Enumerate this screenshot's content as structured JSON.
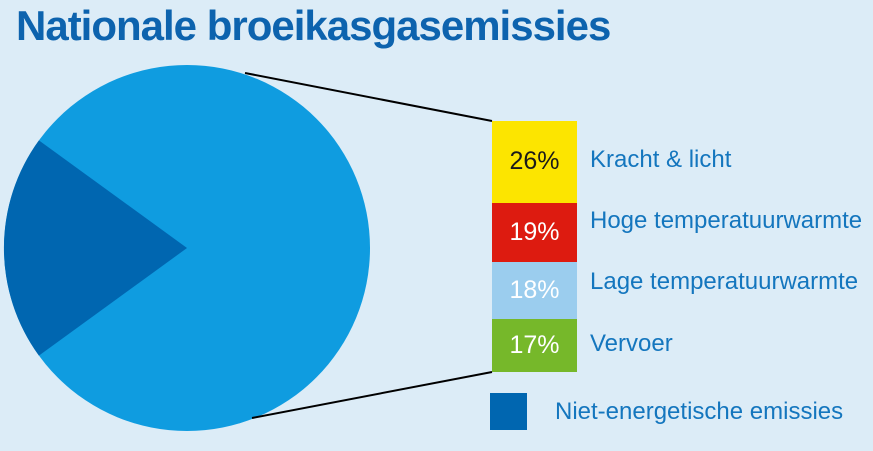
{
  "title": "Nationale broeikasgasemissies",
  "colors": {
    "background": "#dcecf7",
    "title_text": "#0d63ae",
    "label_text": "#1476be",
    "leader_line": "#000000",
    "pie_light": "#0f9ce0",
    "pie_dark": "#0066b0"
  },
  "chart_data": {
    "type": "pie",
    "title": "Nationale broeikasgasemissies",
    "unit": "%",
    "legend_position": "right",
    "pie": {
      "light_slice_value": 80,
      "light_slice_color": "#0f9ce0",
      "dark_slice_value": 20,
      "dark_slice_color": "#0066b0",
      "dark_slice_label": "Niet-energetische emissies",
      "note_value_shown": "dark slice percentage not printed in image; inferred as remainder of 26+19+18+17"
    },
    "detail_bar_segments": [
      {
        "label": "Kracht & licht",
        "value": 26,
        "pct_label": "26%",
        "color": "#fce500",
        "pct_color": "#1a1a1a"
      },
      {
        "label": "Hoge temperatuurwarmte",
        "value": 19,
        "pct_label": "19%",
        "color": "#dd1b10",
        "pct_color": "#ffffff"
      },
      {
        "label": "Lage temperatuurwarmte",
        "value": 18,
        "pct_label": "18%",
        "color": "#9bcdee",
        "pct_color": "#ffffff"
      },
      {
        "label": "Vervoer",
        "value": 17,
        "pct_label": "17%",
        "color": "#76b82a",
        "pct_color": "#ffffff"
      }
    ],
    "legend": [
      {
        "label": "Niet-energetische emissies",
        "color": "#0066b0"
      }
    ]
  }
}
